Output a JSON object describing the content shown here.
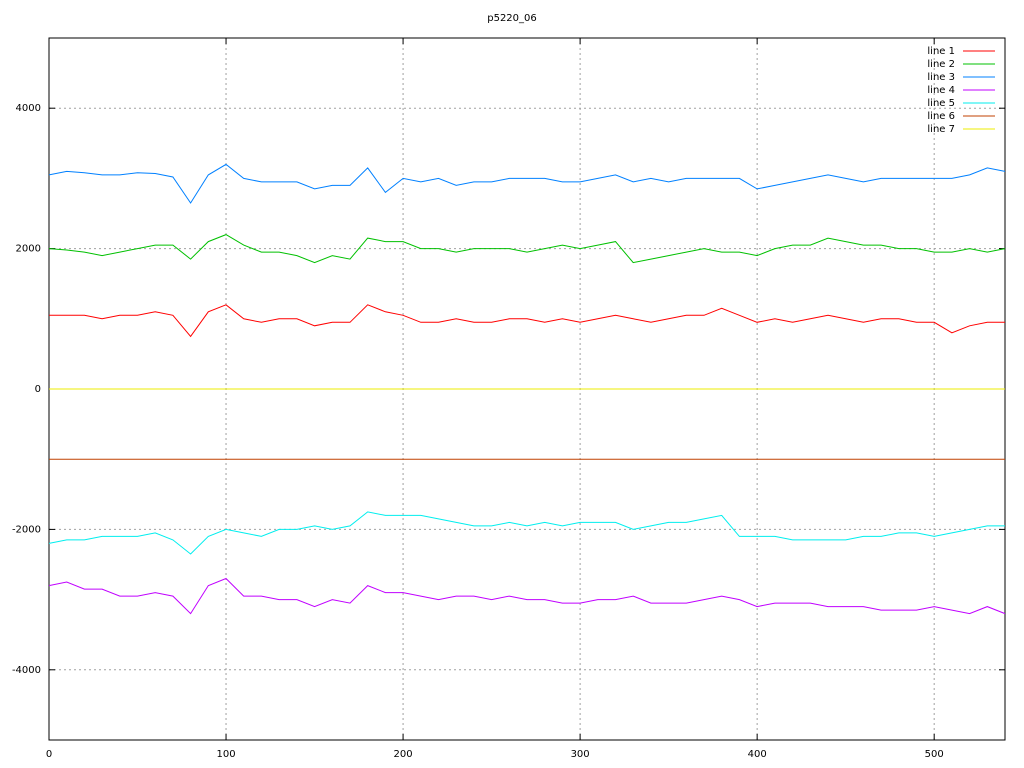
{
  "chart_data": {
    "type": "line",
    "title": "p5220_06",
    "x": [
      0,
      10,
      20,
      30,
      40,
      50,
      60,
      70,
      80,
      90,
      100,
      110,
      120,
      130,
      140,
      150,
      160,
      170,
      180,
      190,
      200,
      210,
      220,
      230,
      240,
      250,
      260,
      270,
      280,
      290,
      300,
      310,
      320,
      330,
      340,
      350,
      360,
      370,
      380,
      390,
      400,
      410,
      420,
      430,
      440,
      450,
      460,
      470,
      480,
      490,
      500,
      510,
      520,
      530,
      540
    ],
    "series": [
      {
        "name": "line 1",
        "color": "#ff0000",
        "values": [
          1050,
          1050,
          1050,
          1000,
          1050,
          1050,
          1100,
          1050,
          750,
          1100,
          1200,
          1000,
          950,
          1000,
          1000,
          900,
          950,
          950,
          1200,
          1100,
          1050,
          950,
          950,
          1000,
          950,
          950,
          1000,
          1000,
          950,
          1000,
          950,
          1000,
          1050,
          1000,
          950,
          1000,
          1050,
          1050,
          1150,
          1050,
          950,
          1000,
          950,
          1000,
          1050,
          1000,
          950,
          1000,
          1000,
          950,
          950,
          800,
          900,
          950,
          950
        ]
      },
      {
        "name": "line 2",
        "color": "#00c000",
        "values": [
          2000,
          1980,
          1950,
          1900,
          1950,
          2000,
          2050,
          2050,
          1850,
          2100,
          2200,
          2050,
          1950,
          1950,
          1900,
          1800,
          1900,
          1850,
          2150,
          2100,
          2100,
          2000,
          2000,
          1950,
          2000,
          2000,
          2000,
          1950,
          2000,
          2050,
          2000,
          2050,
          2100,
          1800,
          1850,
          1900,
          1950,
          2000,
          1950,
          1950,
          1900,
          2000,
          2050,
          2050,
          2150,
          2100,
          2050,
          2050,
          2000,
          2000,
          1950,
          1950,
          2000,
          1950,
          2000
        ]
      },
      {
        "name": "line 3",
        "color": "#0080ff",
        "values": [
          3050,
          3100,
          3080,
          3050,
          3050,
          3080,
          3070,
          3020,
          2650,
          3050,
          3200,
          3000,
          2950,
          2950,
          2950,
          2850,
          2900,
          2900,
          3150,
          2800,
          3000,
          2950,
          3000,
          2900,
          2950,
          2950,
          3000,
          3000,
          3000,
          2950,
          2950,
          3000,
          3050,
          2950,
          3000,
          2950,
          3000,
          3000,
          3000,
          3000,
          2850,
          2900,
          2950,
          3000,
          3050,
          3000,
          2950,
          3000,
          3000,
          3000,
          3000,
          3000,
          3050,
          3150,
          3100
        ]
      },
      {
        "name": "line 4",
        "color": "#c000ff",
        "values": [
          -2800,
          -2750,
          -2850,
          -2850,
          -2950,
          -2950,
          -2900,
          -2950,
          -3200,
          -2800,
          -2700,
          -2950,
          -2950,
          -3000,
          -3000,
          -3100,
          -3000,
          -3050,
          -2800,
          -2900,
          -2900,
          -2950,
          -3000,
          -2950,
          -2950,
          -3000,
          -2950,
          -3000,
          -3000,
          -3050,
          -3050,
          -3000,
          -3000,
          -2950,
          -3050,
          -3050,
          -3050,
          -3000,
          -2950,
          -3000,
          -3100,
          -3050,
          -3050,
          -3050,
          -3100,
          -3100,
          -3100,
          -3150,
          -3150,
          -3150,
          -3100,
          -3150,
          -3200,
          -3100,
          -3200
        ]
      },
      {
        "name": "line 5",
        "color": "#00eeee",
        "values": [
          -2200,
          -2150,
          -2150,
          -2100,
          -2100,
          -2100,
          -2050,
          -2150,
          -2350,
          -2100,
          -2000,
          -2050,
          -2100,
          -2000,
          -2000,
          -1950,
          -2000,
          -1950,
          -1750,
          -1800,
          -1800,
          -1800,
          -1850,
          -1900,
          -1950,
          -1950,
          -1900,
          -1950,
          -1900,
          -1950,
          -1900,
          -1900,
          -1900,
          -2000,
          -1950,
          -1900,
          -1900,
          -1850,
          -1800,
          -2100,
          -2100,
          -2100,
          -2150,
          -2150,
          -2150,
          -2150,
          -2100,
          -2100,
          -2050,
          -2050,
          -2100,
          -2050,
          -2000,
          -1950,
          -1950
        ]
      },
      {
        "name": "line 6",
        "color": "#c04000",
        "values": [
          -1000,
          -1000,
          -1000,
          -1000,
          -1000,
          -1000,
          -1000,
          -1000,
          -1000,
          -1000,
          -1000,
          -1000,
          -1000,
          -1000,
          -1000,
          -1000,
          -1000,
          -1000,
          -1000,
          -1000,
          -1000,
          -1000,
          -1000,
          -1000,
          -1000,
          -1000,
          -1000,
          -1000,
          -1000,
          -1000,
          -1000,
          -1000,
          -1000,
          -1000,
          -1000,
          -1000,
          -1000,
          -1000,
          -1000,
          -1000,
          -1000,
          -1000,
          -1000,
          -1000,
          -1000,
          -1000,
          -1000,
          -1000,
          -1000,
          -1000,
          -1000,
          -1000,
          -1000,
          -1000,
          -1000
        ]
      },
      {
        "name": "line 7",
        "color": "#eeee00",
        "values": [
          0,
          0,
          0,
          0,
          0,
          0,
          0,
          0,
          0,
          0,
          0,
          0,
          0,
          0,
          0,
          0,
          0,
          0,
          0,
          0,
          0,
          0,
          0,
          0,
          0,
          0,
          0,
          0,
          0,
          0,
          0,
          0,
          0,
          0,
          0,
          0,
          0,
          0,
          0,
          0,
          0,
          0,
          0,
          0,
          0,
          0,
          0,
          0,
          0,
          0,
          0,
          0,
          0,
          0,
          0
        ]
      }
    ],
    "xlim": [
      0,
      540
    ],
    "xticks": [
      0,
      100,
      200,
      300,
      400,
      500
    ],
    "ylim": [
      -5000,
      5000
    ],
    "yticks": [
      -4000,
      -2000,
      0,
      2000,
      4000
    ],
    "grid": true,
    "legend": "top right"
  }
}
